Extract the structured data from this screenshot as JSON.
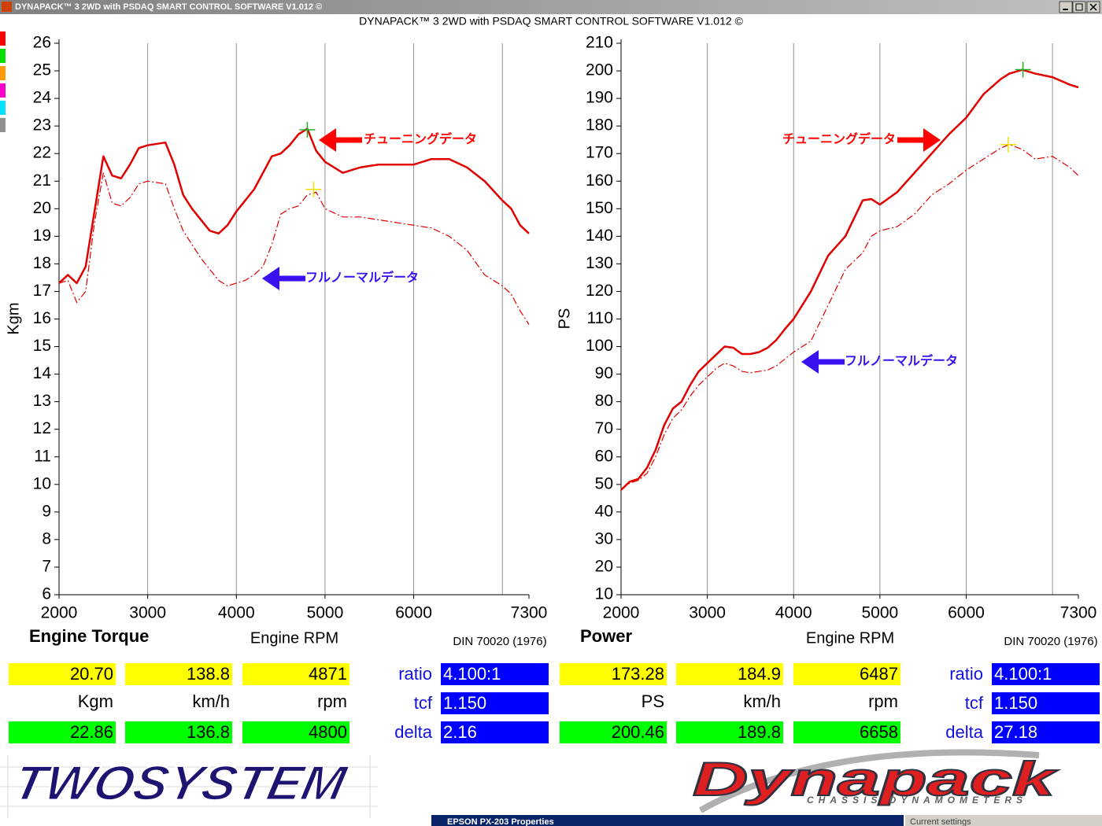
{
  "window": {
    "title": "DYNAPACK™ 3 2WD with PSDAQ SMART CONTROL SOFTWARE V1.012 ©"
  },
  "header": {
    "title": "DYNAPACK™ 3 2WD with PSDAQ SMART CONTROL SOFTWARE V1.012 ©"
  },
  "chart_data": [
    {
      "type": "line",
      "title": "Engine Torque",
      "xlabel": "Engine RPM",
      "ylabel": "Kgm",
      "note": "DIN 70020 (1976)",
      "x": [
        2000,
        2100,
        2200,
        2300,
        2400,
        2500,
        2600,
        2700,
        2800,
        2900,
        3000,
        3200,
        3300,
        3400,
        3500,
        3600,
        3700,
        3800,
        3900,
        4000,
        4100,
        4200,
        4300,
        4400,
        4500,
        4600,
        4700,
        4800,
        4900,
        5000,
        5200,
        5400,
        5600,
        5800,
        6000,
        6200,
        6400,
        6600,
        6800,
        7000,
        7100,
        7200,
        7300
      ],
      "series": [
        {
          "name": "チューニングデータ",
          "color": "#e00000",
          "style": "solid",
          "label_color": "#ff0000",
          "values": [
            17.3,
            17.6,
            17.3,
            17.9,
            19.9,
            21.9,
            21.2,
            21.1,
            21.6,
            22.2,
            22.3,
            22.4,
            21.6,
            20.5,
            20.0,
            19.6,
            19.2,
            19.1,
            19.4,
            19.9,
            20.3,
            20.7,
            21.3,
            21.9,
            22.0,
            22.3,
            22.7,
            22.9,
            22.1,
            21.7,
            21.3,
            21.5,
            21.6,
            21.6,
            21.6,
            21.8,
            21.8,
            21.5,
            21.0,
            20.3,
            20.0,
            19.4,
            19.1
          ]
        },
        {
          "name": "フルノーマルデータ",
          "color": "#e00000",
          "style": "dashdot",
          "label_color": "#3a10f0",
          "values": [
            17.3,
            17.4,
            16.6,
            17.0,
            19.5,
            21.3,
            20.2,
            20.1,
            20.4,
            20.9,
            21.0,
            20.9,
            20.0,
            19.2,
            18.7,
            18.2,
            17.8,
            17.4,
            17.2,
            17.3,
            17.4,
            17.6,
            17.9,
            18.7,
            19.8,
            20.0,
            20.1,
            20.5,
            20.6,
            20.0,
            19.7,
            19.7,
            19.6,
            19.5,
            19.4,
            19.3,
            19.0,
            18.5,
            17.6,
            17.2,
            16.9,
            16.3,
            15.8
          ]
        }
      ],
      "markers": [
        {
          "x": 4800,
          "y": 22.86,
          "color": "#22b022"
        },
        {
          "x": 4871,
          "y": 20.7,
          "color": "#f0e000"
        }
      ],
      "xlim": [
        2000,
        7300
      ],
      "xticks": [
        2000,
        3000,
        4000,
        5000,
        6000,
        7300
      ],
      "xgrid": [
        3000,
        4000,
        5000,
        6000,
        7000
      ],
      "ylim": [
        6,
        26
      ],
      "yticks": [
        6,
        7,
        8,
        9,
        10,
        11,
        12,
        13,
        14,
        15,
        16,
        17,
        18,
        19,
        20,
        21,
        22,
        23,
        24,
        25,
        26
      ],
      "grid": true
    },
    {
      "type": "line",
      "title": "Power",
      "xlabel": "Engine RPM",
      "ylabel": "PS",
      "note": "DIN 70020 (1976)",
      "x": [
        2000,
        2100,
        2200,
        2300,
        2400,
        2500,
        2600,
        2700,
        2800,
        2900,
        3000,
        3100,
        3200,
        3300,
        3400,
        3500,
        3600,
        3700,
        3800,
        3900,
        4000,
        4200,
        4400,
        4600,
        4800,
        4900,
        5000,
        5200,
        5400,
        5600,
        5800,
        6000,
        6200,
        6400,
        6500,
        6650,
        6800,
        7000,
        7200,
        7300
      ],
      "series": [
        {
          "name": "チューニングデータ",
          "color": "#e00000",
          "style": "solid",
          "label_color": "#ff0000",
          "values": [
            48,
            51,
            52,
            56,
            62.5,
            71.5,
            77.5,
            80,
            86,
            91,
            94,
            97,
            100,
            99.6,
            97.3,
            97.3,
            98,
            99.6,
            102.4,
            106.4,
            110,
            120,
            133,
            140,
            153,
            153.5,
            151.5,
            156,
            163,
            170,
            177,
            183,
            191.5,
            197,
            199,
            200.4,
            199,
            197.7,
            195,
            194
          ]
        },
        {
          "name": "フルノーマルデータ",
          "color": "#e00000",
          "style": "dashdot",
          "label_color": "#3a10f0",
          "values": [
            48,
            50.5,
            51.5,
            54,
            60,
            68,
            74,
            77,
            82,
            86,
            89,
            92,
            94,
            93,
            91,
            90.5,
            91,
            91.5,
            93,
            95.5,
            98,
            102,
            115,
            128,
            134,
            140,
            142,
            143.5,
            148,
            155,
            159,
            164,
            168,
            172,
            173.3,
            171.5,
            168,
            169,
            165,
            162
          ]
        }
      ],
      "markers": [
        {
          "x": 6658,
          "y": 200.46,
          "color": "#22b022"
        },
        {
          "x": 6487,
          "y": 173.28,
          "color": "#f0e000"
        }
      ],
      "xlim": [
        2000,
        7300
      ],
      "xticks": [
        2000,
        3000,
        4000,
        5000,
        6000,
        7300
      ],
      "xgrid": [
        3000,
        4000,
        5000,
        6000,
        7000
      ],
      "ylim": [
        10,
        210
      ],
      "yticks": [
        10,
        20,
        30,
        40,
        50,
        60,
        70,
        80,
        90,
        100,
        110,
        120,
        130,
        140,
        150,
        160,
        170,
        180,
        190,
        200,
        210
      ],
      "grid": true
    }
  ],
  "readouts": [
    {
      "rows": [
        [
          "20.70",
          "138.8",
          "4871"
        ],
        [
          "Kgm",
          "km/h",
          "rpm"
        ],
        [
          "22.86",
          "136.8",
          "4800"
        ]
      ],
      "params": [
        {
          "label": "ratio",
          "value": "4.100:1"
        },
        {
          "label": "tcf",
          "value": "1.150"
        },
        {
          "label": "delta",
          "value": "2.16"
        }
      ]
    },
    {
      "rows": [
        [
          "173.28",
          "184.9",
          "6487"
        ],
        [
          "PS",
          "km/h",
          "rpm"
        ],
        [
          "200.46",
          "189.8",
          "6658"
        ]
      ],
      "params": [
        {
          "label": "ratio",
          "value": "4.100:1"
        },
        {
          "label": "tcf",
          "value": "1.150"
        },
        {
          "label": "delta",
          "value": "27.18"
        }
      ]
    }
  ],
  "logos": {
    "left": "TWOSYSTEM",
    "right": "Dynapack",
    "right_sub": "CHASSIS DYNAMOMETERS"
  },
  "taskbar": {
    "window": "EPSON PX-203 Properties",
    "other": "Current settings"
  }
}
